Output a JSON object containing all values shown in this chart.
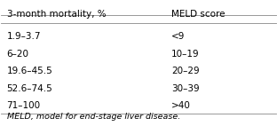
{
  "col1_header": "3-month mortality, %",
  "col2_header": "MELD score",
  "rows": [
    [
      "1.9–3.7",
      "<9"
    ],
    [
      "6–20",
      "10–19"
    ],
    [
      "19.6–45.5",
      "20–29"
    ],
    [
      "52.6–74.5",
      "30–39"
    ],
    [
      "71–100",
      ">40"
    ]
  ],
  "footnote": "MELD, model for end-stage liver disease.",
  "background_color": "#ffffff",
  "text_color": "#000000",
  "line_color": "#888888",
  "header_fontsize": 7.5,
  "body_fontsize": 7.5,
  "footnote_fontsize": 6.8
}
